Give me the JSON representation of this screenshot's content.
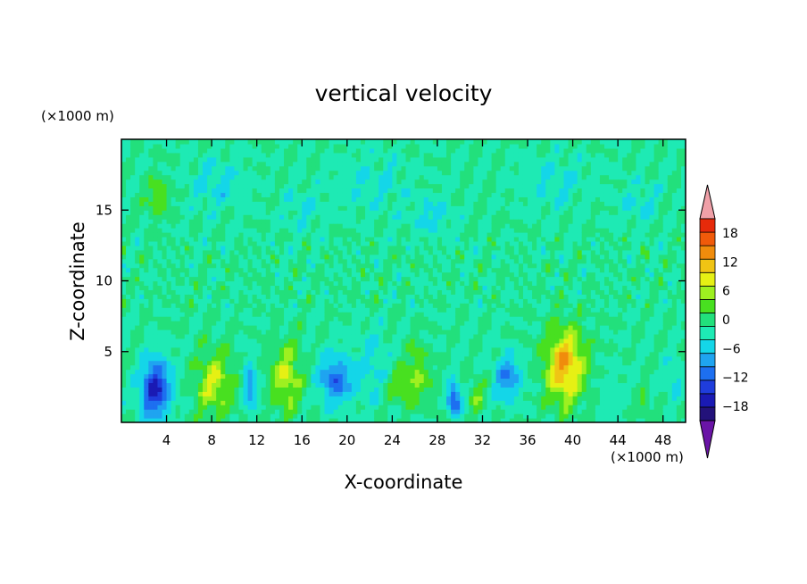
{
  "chart_data": {
    "type": "heatmap",
    "title": "vertical velocity",
    "xlabel": "X-coordinate",
    "ylabel": "Z-coordinate",
    "x_unit": "(×1000 m)",
    "y_unit": "(×1000 m)",
    "xlim": [
      0,
      50
    ],
    "ylim": [
      0,
      20
    ],
    "x_ticks": [
      4,
      8,
      12,
      16,
      20,
      24,
      28,
      32,
      36,
      40,
      44,
      48
    ],
    "y_ticks": [
      5,
      10,
      15
    ],
    "colorbar": {
      "levels": [
        -21,
        -18,
        -15,
        -12,
        -9,
        -6,
        -3,
        0,
        3,
        6,
        9,
        12,
        15,
        18,
        21
      ],
      "colors": [
        "#6a14a6",
        "#23127a",
        "#1a1ab4",
        "#1f3ddc",
        "#1d6ff0",
        "#1fa4f0",
        "#14d6e8",
        "#1eeab4",
        "#22e07c",
        "#48e020",
        "#9ef020",
        "#e6f014",
        "#f0c414",
        "#f08c0c",
        "#f05a0a",
        "#e62a0a",
        "#f0a0a8"
      ],
      "tick_labels": [
        "18",
        "12",
        "6",
        "0",
        "−6",
        "−12",
        "−18"
      ],
      "tick_values": [
        18,
        12,
        6,
        0,
        -6,
        -12,
        -18
      ]
    },
    "features": [
      {
        "x": 3.0,
        "z": 2.4,
        "w": -16,
        "rx": 1.3,
        "rz": 2.1
      },
      {
        "x": 8.2,
        "z": 2.8,
        "w": 9,
        "rx": 1.6,
        "rz": 2.2
      },
      {
        "x": 11.4,
        "z": 2.7,
        "w": -8,
        "rx": 0.6,
        "rz": 1.8
      },
      {
        "x": 14.6,
        "z": 3.2,
        "w": 9,
        "rx": 1.3,
        "rz": 2.4
      },
      {
        "x": 19.0,
        "z": 3.0,
        "w": -11,
        "rx": 1.5,
        "rz": 1.7
      },
      {
        "x": 22.3,
        "z": 4.0,
        "w": -4,
        "rx": 1.3,
        "rz": 2.8
      },
      {
        "x": 25.5,
        "z": 2.6,
        "w": 6,
        "rx": 2.0,
        "rz": 1.4
      },
      {
        "x": 26.2,
        "z": 4.6,
        "w": 4,
        "rx": 0.9,
        "rz": 1.4
      },
      {
        "x": 29.5,
        "z": 1.7,
        "w": -13,
        "rx": 0.6,
        "rz": 1.2
      },
      {
        "x": 31.5,
        "z": 2.0,
        "w": 5,
        "rx": 0.8,
        "rz": 1.3
      },
      {
        "x": 34.2,
        "z": 3.2,
        "w": -9,
        "rx": 1.2,
        "rz": 1.6
      },
      {
        "x": 39.3,
        "z": 4.0,
        "w": 15,
        "rx": 1.7,
        "rz": 2.6
      },
      {
        "x": 43.5,
        "z": 2.2,
        "w": -2,
        "rx": 1.3,
        "rz": 1.8
      },
      {
        "x": 46.3,
        "z": 1.2,
        "w": 5,
        "rx": 0.6,
        "rz": 0.8
      },
      {
        "x": 49.0,
        "z": 3.0,
        "w": -4,
        "rx": 0.8,
        "rz": 1.5
      },
      {
        "x": 3.2,
        "z": 16.0,
        "w": 5,
        "rx": 1.2,
        "rz": 1.4
      },
      {
        "x": 8.5,
        "z": 16.8,
        "w": -4,
        "rx": 2.5,
        "rz": 1.8
      },
      {
        "x": 22.0,
        "z": 17.0,
        "w": -3,
        "rx": 3.5,
        "rz": 2.0
      },
      {
        "x": 27.5,
        "z": 14.5,
        "w": -4,
        "rx": 1.8,
        "rz": 1.3
      },
      {
        "x": 38.5,
        "z": 17.0,
        "w": -3,
        "rx": 3.0,
        "rz": 2.0
      },
      {
        "x": 46.0,
        "z": 15.5,
        "w": -3,
        "rx": 2.0,
        "rz": 1.5
      },
      {
        "x": 16.0,
        "z": 15.0,
        "w": -3,
        "rx": 1.8,
        "rz": 1.5
      }
    ]
  }
}
